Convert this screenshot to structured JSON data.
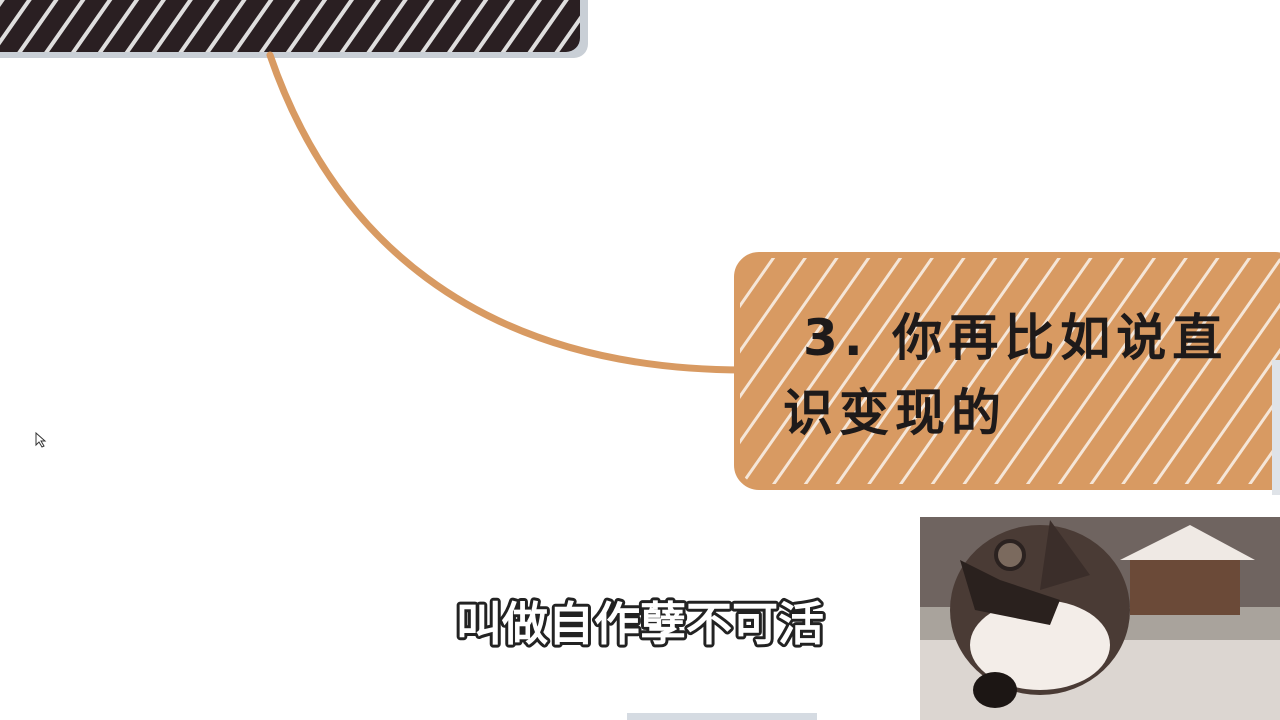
{
  "node": {
    "lines": [
      "3. 你再比如说直",
      "识变现的"
    ]
  },
  "subtitle": "叫做自作孽不可活"
}
